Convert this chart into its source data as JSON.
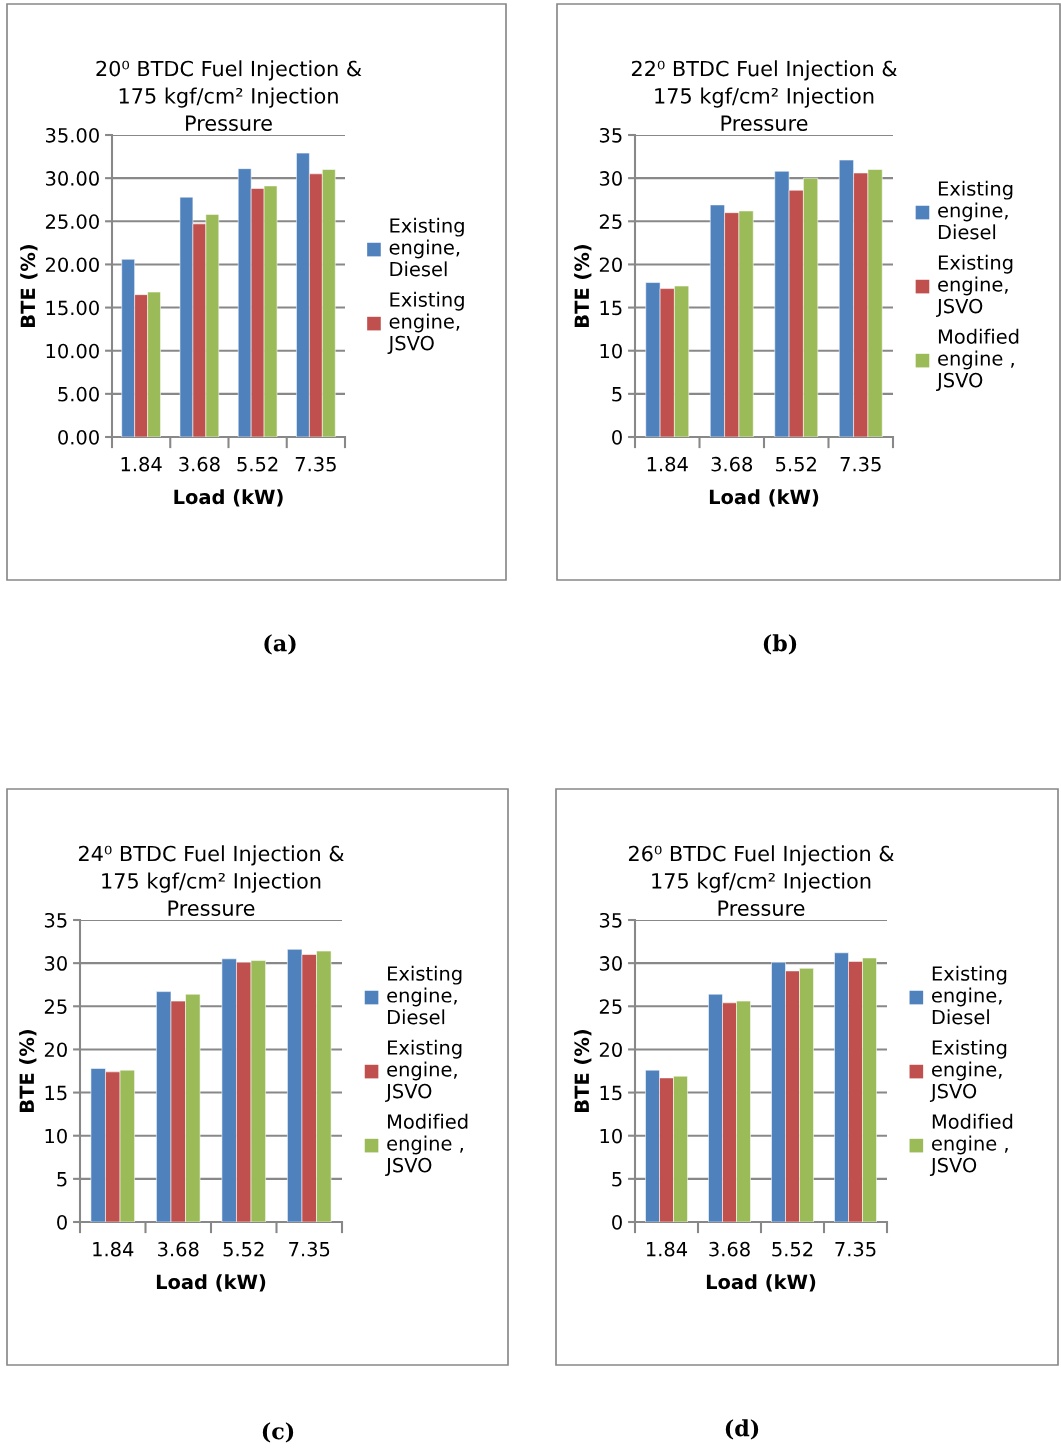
{
  "chart_data": [
    {
      "type": "bar",
      "title": "20⁰ BTDC Fuel Injection & 175 kgf/cm² Injection Pressure",
      "xlabel": "Load (kW)",
      "ylabel": "BTE (%)",
      "categories": [
        "1.84",
        "3.68",
        "5.52",
        "7.35"
      ],
      "series": [
        {
          "name": "Existing engine, Diesel",
          "color": "#4f81bd",
          "values": [
            20.6,
            27.8,
            31.1,
            32.9
          ]
        },
        {
          "name": "Existing engine, JSVO",
          "color": "#c0504d",
          "values": [
            16.5,
            24.7,
            28.8,
            30.5
          ]
        },
        {
          "color": "#9bbb59",
          "values": [
            16.8,
            25.8,
            29.1,
            31.0
          ]
        }
      ],
      "ylim": [
        0,
        35
      ],
      "yticks": [
        {
          "value": 0,
          "label": "0.00"
        },
        {
          "value": 5,
          "label": "5.00"
        },
        {
          "value": 10,
          "label": "10.00"
        },
        {
          "value": 15,
          "label": "15.00"
        },
        {
          "value": 20,
          "label": "20.00"
        },
        {
          "value": 25,
          "label": "25.00"
        },
        {
          "value": 30,
          "label": "30.00"
        },
        {
          "value": 35,
          "label": "35.00"
        }
      ],
      "grid": "y",
      "legend": "right",
      "annotations": [
        "(a)"
      ]
    },
    {
      "type": "bar",
      "title": "22⁰ BTDC Fuel Injection & 175 kgf/cm² Injection Pressure",
      "xlabel": "Load (kW)",
      "ylabel": "BTE (%)",
      "categories": [
        "1.84",
        "3.68",
        "5.52",
        "7.35"
      ],
      "series": [
        {
          "name": "Existing engine, Diesel",
          "color": "#4f81bd",
          "values": [
            17.9,
            26.9,
            30.8,
            32.1
          ]
        },
        {
          "name": "Existing engine, JSVO",
          "color": "#c0504d",
          "values": [
            17.2,
            26.0,
            28.6,
            30.6
          ]
        },
        {
          "name": "Modified engine , JSVO",
          "color": "#9bbb59",
          "values": [
            17.5,
            26.2,
            30.0,
            31.0
          ]
        }
      ],
      "ylim": [
        0,
        35
      ],
      "yticks": [
        0,
        5,
        10,
        15,
        20,
        25,
        30,
        35
      ],
      "grid": "y",
      "legend": "right",
      "annotations": [
        "(b)"
      ]
    },
    {
      "type": "bar",
      "title": "24⁰ BTDC Fuel Injection & 175 kgf/cm² Injection Pressure",
      "xlabel": "Load (kW)",
      "ylabel": "BTE (%)",
      "categories": [
        "1.84",
        "3.68",
        "5.52",
        "7.35"
      ],
      "series": [
        {
          "name": "Existing engine, Diesel",
          "color": "#4f81bd",
          "values": [
            17.8,
            26.7,
            30.5,
            31.6
          ]
        },
        {
          "name": "Existing engine, JSVO",
          "color": "#c0504d",
          "values": [
            17.4,
            25.6,
            30.1,
            31.0
          ]
        },
        {
          "name": "Modified engine , JSVO",
          "color": "#9bbb59",
          "values": [
            17.6,
            26.4,
            30.3,
            31.4
          ]
        }
      ],
      "ylim": [
        0,
        35
      ],
      "yticks": [
        0,
        5,
        10,
        15,
        20,
        25,
        30,
        35
      ],
      "grid": "y",
      "legend": "right",
      "annotations": [
        "(c)"
      ]
    },
    {
      "type": "bar",
      "title": "26⁰ BTDC Fuel Injection & 175 kgf/cm² Injection Pressure",
      "xlabel": "Load (kW)",
      "ylabel": "BTE (%)",
      "categories": [
        "1.84",
        "3.68",
        "5.52",
        "7.35"
      ],
      "series": [
        {
          "name": "Existing engine, Diesel",
          "color": "#4f81bd",
          "values": [
            17.6,
            26.4,
            30.1,
            31.2
          ]
        },
        {
          "name": "Existing engine, JSVO",
          "color": "#c0504d",
          "values": [
            16.7,
            25.4,
            29.1,
            30.2
          ]
        },
        {
          "name": "Modified engine , JSVO",
          "color": "#9bbb59",
          "values": [
            16.9,
            25.6,
            29.4,
            30.6
          ]
        }
      ],
      "ylim": [
        0,
        35
      ],
      "yticks": [
        0,
        5,
        10,
        15,
        20,
        25,
        30,
        35
      ],
      "grid": "y",
      "legend": "right",
      "annotations": [
        "(d)"
      ]
    }
  ]
}
